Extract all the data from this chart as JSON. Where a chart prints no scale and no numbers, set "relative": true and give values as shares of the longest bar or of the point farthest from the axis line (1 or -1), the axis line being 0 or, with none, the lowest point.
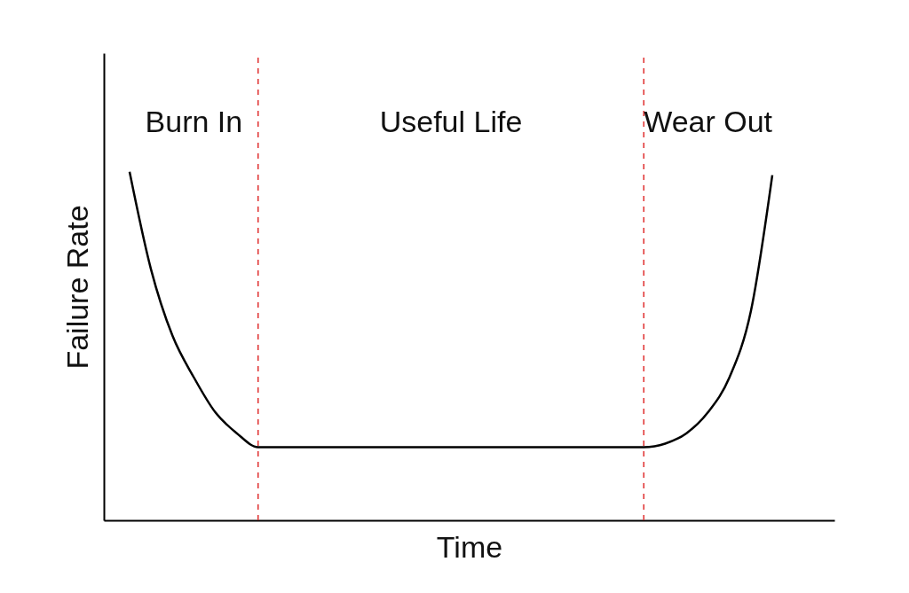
{
  "chart_data": {
    "type": "line",
    "xlabel": "Time",
    "ylabel": "Failure Rate",
    "relative": true,
    "categories": [
      null,
      null,
      null,
      null,
      null,
      null,
      null,
      null,
      null,
      null,
      null,
      null,
      null,
      null,
      null,
      null,
      null,
      null,
      null,
      null,
      null,
      null,
      null,
      null,
      null,
      null,
      null,
      null,
      null,
      null,
      null
    ],
    "series": [
      {
        "color": "#000000",
        "values": [
          1,
          0.72,
          0.53,
          0.41,
          0.31,
          0.25,
          0.21,
          0.21,
          0.21,
          0.21,
          0.21,
          0.21,
          0.21,
          0.21,
          0.21,
          0.21,
          0.21,
          0.21,
          0.21,
          0.21,
          0.21,
          0.21,
          0.21,
          0.21,
          0.21,
          0.22,
          0.25,
          0.31,
          0.41,
          0.6,
          0.99
        ]
      }
    ],
    "annotations": [
      "Burn In",
      "Useful Life",
      "Wear Out"
    ],
    "grid": false,
    "marker": "none",
    "line_style": "solid"
  }
}
